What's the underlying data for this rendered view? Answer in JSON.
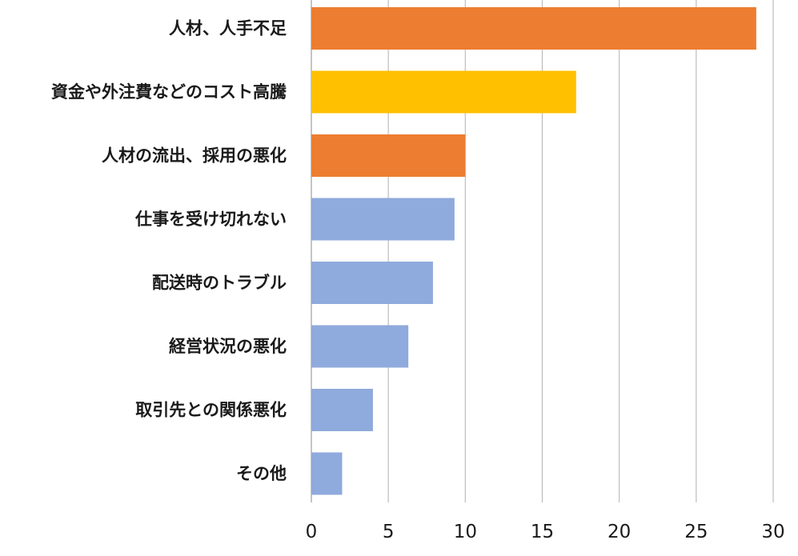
{
  "chart_data": {
    "type": "bar",
    "orientation": "horizontal",
    "title": "",
    "xlabel": "",
    "ylabel": "",
    "xlim": [
      0,
      30
    ],
    "ticks": [
      0,
      5,
      10,
      15,
      20,
      25,
      30
    ],
    "grid": true,
    "legend": "none",
    "categories": [
      "人材、人手不足",
      "資金や外注費などのコスト高騰",
      "人材の流出、採用の悪化",
      "仕事を受け切れない",
      "配送時のトラブル",
      "経営状況の悪化",
      "取引先との関係悪化",
      "その他"
    ],
    "values": [
      28.9,
      17.2,
      10.0,
      9.3,
      7.9,
      6.3,
      4.0,
      2.0
    ],
    "bar_colors": [
      "#ed7d31",
      "#ffc000",
      "#ed7d31",
      "#8faadc",
      "#8faadc",
      "#8faadc",
      "#8faadc",
      "#8faadc"
    ]
  }
}
